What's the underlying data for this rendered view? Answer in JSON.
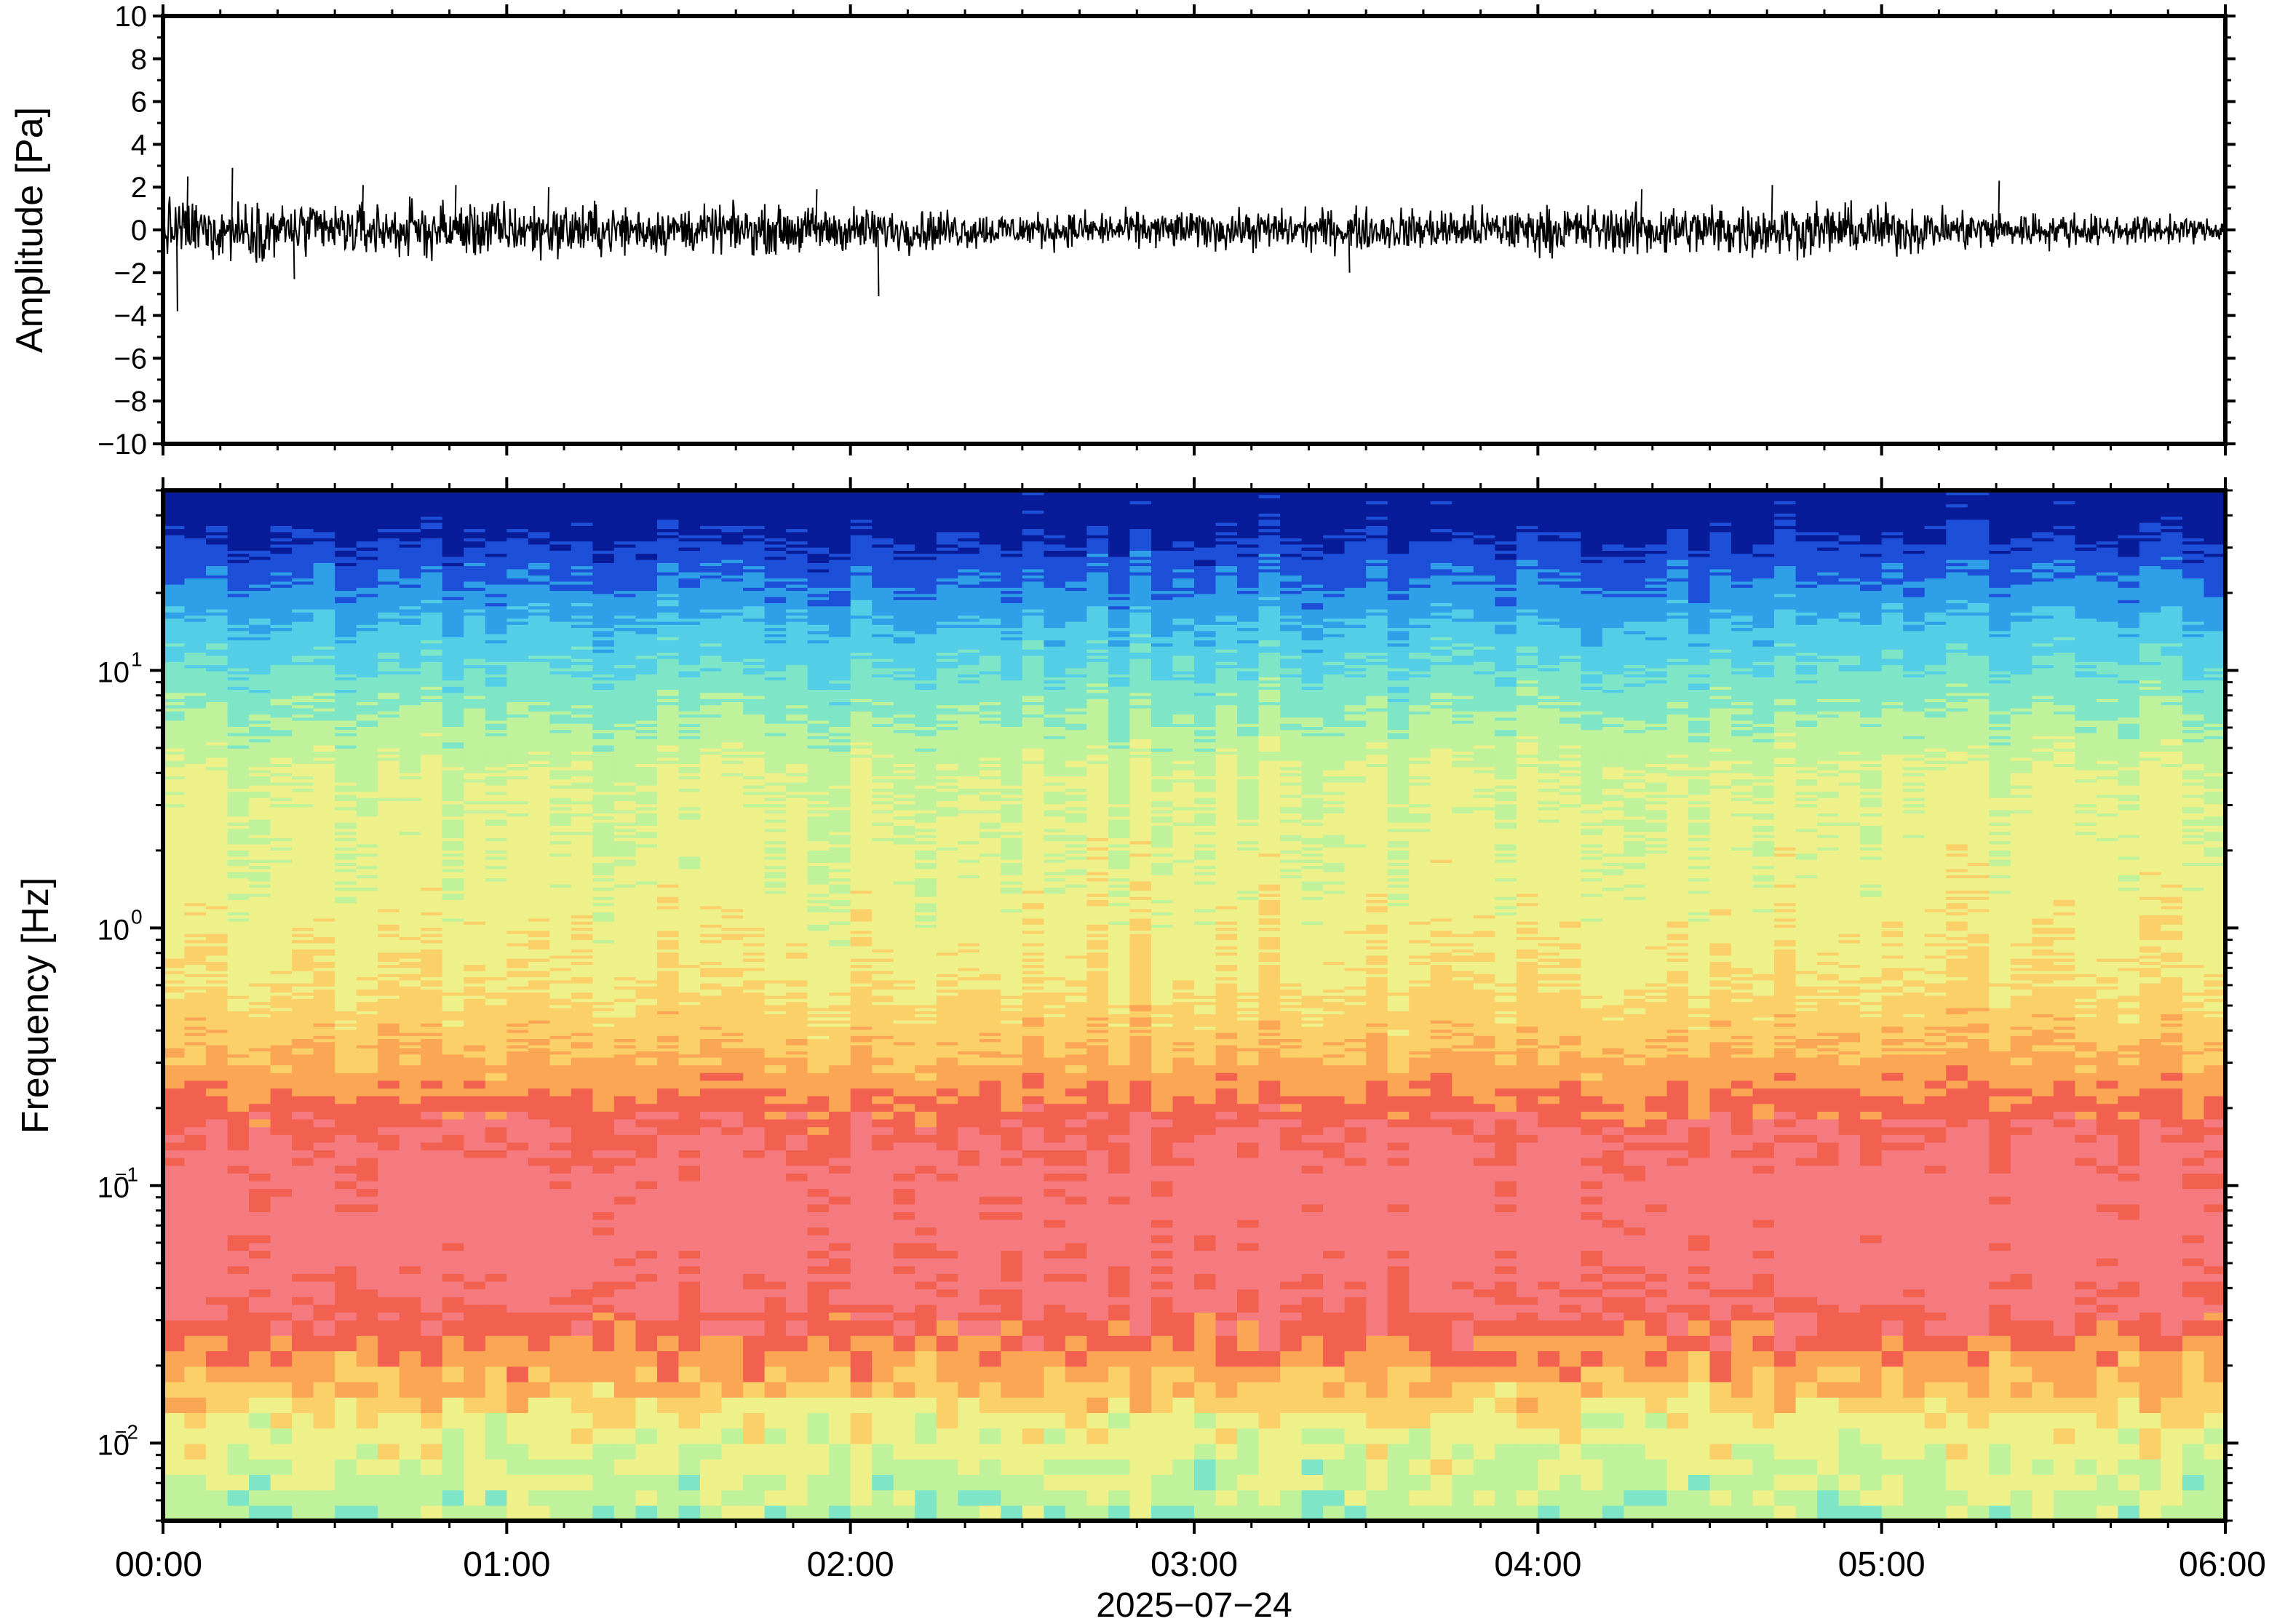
{
  "chart_data": [
    {
      "type": "line",
      "panel": "waveform",
      "ylabel": "Amplitude [Pa]",
      "ylim": [
        -10,
        10
      ],
      "yticks": [
        10,
        8,
        6,
        4,
        2,
        0,
        -2,
        -4,
        -6,
        -8,
        -10
      ],
      "ytick_labels": [
        "10",
        "8",
        "6",
        "4",
        "2",
        "0",
        "−2",
        "−4",
        "−6",
        "−8",
        "−10"
      ],
      "xlim": [
        "00:00",
        "06:00"
      ],
      "envelope": {
        "hours": [
          0,
          0.5,
          1,
          1.5,
          2,
          2.5,
          3,
          3.5,
          4,
          4.5,
          5,
          5.5,
          6
        ],
        "typical_abs_amplitude_pa": [
          0.8,
          0.7,
          0.75,
          0.6,
          0.6,
          0.45,
          0.5,
          0.55,
          0.6,
          0.7,
          0.65,
          0.45,
          0.3
        ]
      },
      "spikes": [
        {
          "hour": 0.04,
          "value": -3.8
        },
        {
          "hour": 0.07,
          "value": 2.5
        },
        {
          "hour": 0.2,
          "value": 2.9
        },
        {
          "hour": 0.38,
          "value": -2.3
        },
        {
          "hour": 0.58,
          "value": 2.1
        },
        {
          "hour": 0.85,
          "value": 2.1
        },
        {
          "hour": 1.12,
          "value": 2.0
        },
        {
          "hour": 1.9,
          "value": 1.9
        },
        {
          "hour": 2.08,
          "value": -3.1
        },
        {
          "hour": 3.45,
          "value": -2.0
        },
        {
          "hour": 4.3,
          "value": 1.9
        },
        {
          "hour": 4.68,
          "value": 2.1
        },
        {
          "hour": 5.34,
          "value": 2.3
        }
      ],
      "line_color": "#000000"
    },
    {
      "type": "heatmap",
      "panel": "spectrogram",
      "ylabel": "Frequency [Hz]",
      "yscale": "log",
      "ylim": [
        0.005,
        50
      ],
      "yticks": [
        0.01,
        0.1,
        1,
        10
      ],
      "ytick_labels": [
        {
          "base": "10",
          "exp": "−2"
        },
        {
          "base": "10",
          "exp": "−1"
        },
        {
          "base": "10",
          "exp": "0"
        },
        {
          "base": "10",
          "exp": "1"
        }
      ],
      "xlabel": "2025−07−24",
      "xtick_labels": [
        "00:00",
        "01:00",
        "02:00",
        "03:00",
        "04:00",
        "05:00",
        "06:00"
      ],
      "xlim": [
        0,
        6
      ],
      "colormap": [
        "#081c9a",
        "#1d4fd8",
        "#2f9fe8",
        "#54cde6",
        "#7ee6c6",
        "#bff29a",
        "#eef08a",
        "#fbd068",
        "#fba654",
        "#f2604f",
        "#f57a80"
      ],
      "profile": {
        "freq_hz": [
          0.005,
          0.012,
          0.02,
          0.035,
          0.06,
          0.1,
          0.17,
          0.3,
          0.6,
          1.5,
          4,
          8,
          15,
          25,
          40
        ],
        "relative_level": [
          0.48,
          0.6,
          0.78,
          0.93,
          0.98,
          0.97,
          0.9,
          0.74,
          0.63,
          0.58,
          0.55,
          0.42,
          0.28,
          0.15,
          0.03
        ]
      }
    }
  ]
}
